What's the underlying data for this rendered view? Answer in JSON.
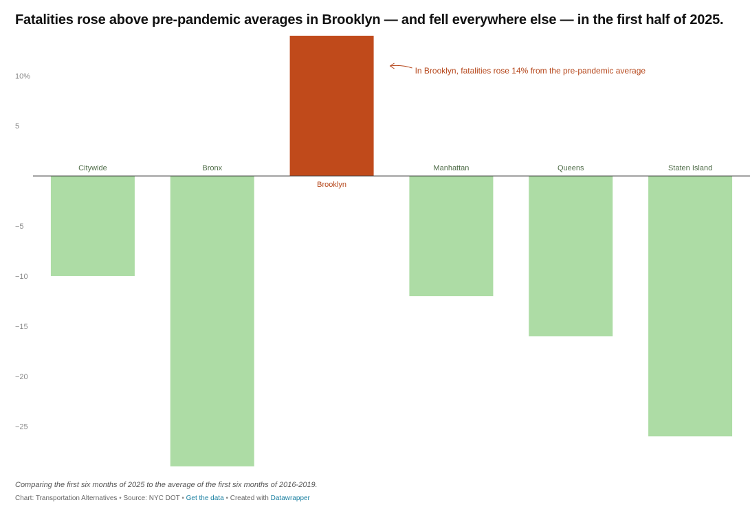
{
  "chart_data": {
    "type": "bar",
    "title": "Fatalities rose above pre-pandemic averages in Brooklyn — and fell everywhere else — in the first half of 2025.",
    "categories": [
      "Citywide",
      "Bronx",
      "Brooklyn",
      "Manhattan",
      "Queens",
      "Staten Island"
    ],
    "values": [
      -10,
      -29,
      14,
      -12,
      -16,
      -26
    ],
    "highlight": "Brooklyn",
    "ylim": [
      -29,
      14
    ],
    "yticks": [
      -25,
      -20,
      -15,
      -10,
      -5,
      5,
      10
    ],
    "ytick_labels": [
      "−25",
      "−20",
      "−15",
      "−10",
      "−5",
      "5",
      "10%"
    ],
    "xlabel": "",
    "ylabel": "",
    "grid": false,
    "annotation": {
      "text": "In Brooklyn, fatalities rose 14% from the pre-pandemic average",
      "target": "Brooklyn"
    },
    "colors": {
      "negative": "#addca5",
      "positive": "#c04a1b",
      "negative_label": "#4e6b47",
      "positive_label": "#b5461a",
      "tick": "#888888",
      "baseline": "#333333"
    }
  },
  "notes": "Comparing the first six months of 2025 to the average of the first six months of 2016-2019.",
  "footer": {
    "chart_by": "Chart: Transportation Alternatives",
    "source": "Source: NYC DOT",
    "get_data": "Get the data",
    "created_with_prefix": "Created with",
    "tool": "Datawrapper"
  }
}
